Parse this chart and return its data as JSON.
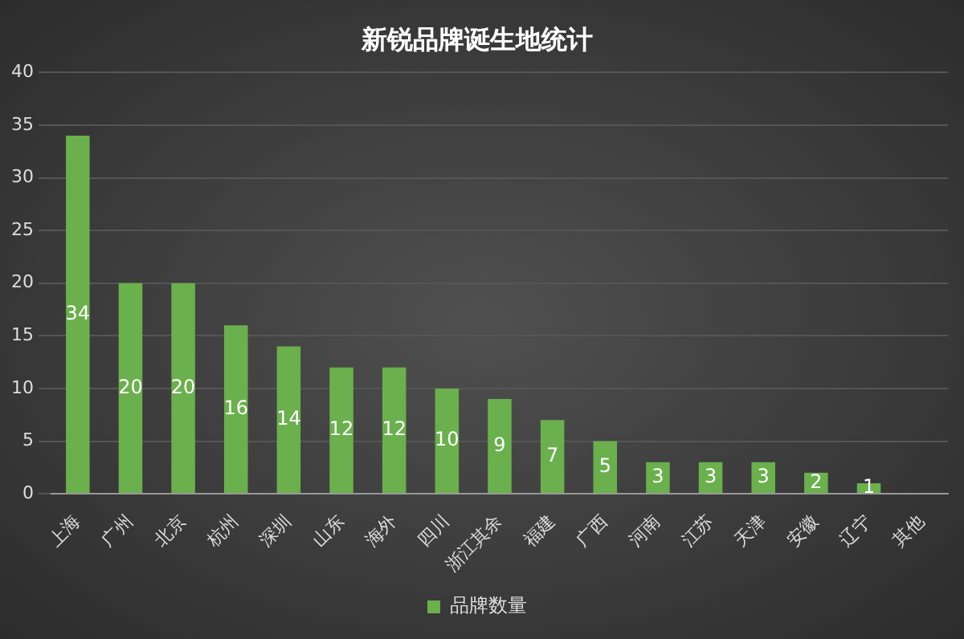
{
  "chart_data": {
    "type": "bar",
    "title": "新锐品牌诞生地统计",
    "categories": [
      "上海",
      "广州",
      "北京",
      "杭州",
      "深圳",
      "山东",
      "海外",
      "四川",
      "浙江其余",
      "福建",
      "广西",
      "河南",
      "江苏",
      "天津",
      "安徽",
      "辽宁",
      "其他"
    ],
    "series": [
      {
        "name": "品牌数量",
        "color": "#6ab04c",
        "values": [
          34,
          20,
          20,
          16,
          14,
          12,
          12,
          10,
          9,
          7,
          5,
          3,
          3,
          3,
          2,
          1,
          0
        ],
        "value_labels": [
          "34",
          "20",
          "20",
          "16",
          "14",
          "12",
          "12",
          "10",
          "9",
          "7",
          "5",
          "3",
          "3",
          "3",
          "2",
          "1",
          null
        ]
      }
    ],
    "ylim": [
      0,
      40
    ],
    "yticks": [
      0,
      5,
      10,
      15,
      20,
      25,
      30,
      35,
      40
    ],
    "grid": "y",
    "legend": "bottom"
  }
}
